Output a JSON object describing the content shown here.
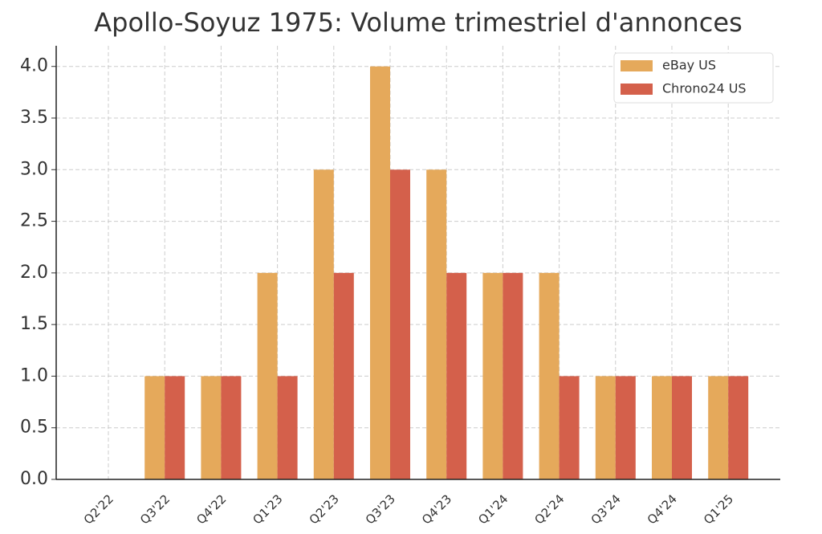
{
  "chart_data": {
    "type": "bar",
    "title": "Apollo-Soyuz 1975: Volume trimestriel d'annonces",
    "categories": [
      "Q2'22",
      "Q3'22",
      "Q4'22",
      "Q1'23",
      "Q2'23",
      "Q3'23",
      "Q4'23",
      "Q1'24",
      "Q2'24",
      "Q3'24",
      "Q4'24",
      "Q1'25"
    ],
    "series": [
      {
        "name": "eBay US",
        "color": "#e5a95b",
        "values": [
          0,
          1,
          1,
          2,
          3,
          4,
          3,
          2,
          2,
          1,
          1,
          1
        ]
      },
      {
        "name": "Chrono24 US",
        "color": "#d4604b",
        "values": [
          0,
          1,
          1,
          1,
          2,
          3,
          2,
          2,
          1,
          1,
          1,
          1
        ]
      }
    ],
    "ylim": [
      0,
      4.2
    ],
    "yticks": [
      {
        "value": 0,
        "label": "0.0"
      },
      0.5,
      {
        "value": 1,
        "label": "1.0"
      },
      1.5,
      {
        "value": 2,
        "label": "2.0"
      },
      2.5,
      {
        "value": 3,
        "label": "3.0"
      },
      3.5,
      {
        "value": 4,
        "label": "4.0"
      }
    ],
    "grid": true,
    "legend": "upper right"
  }
}
